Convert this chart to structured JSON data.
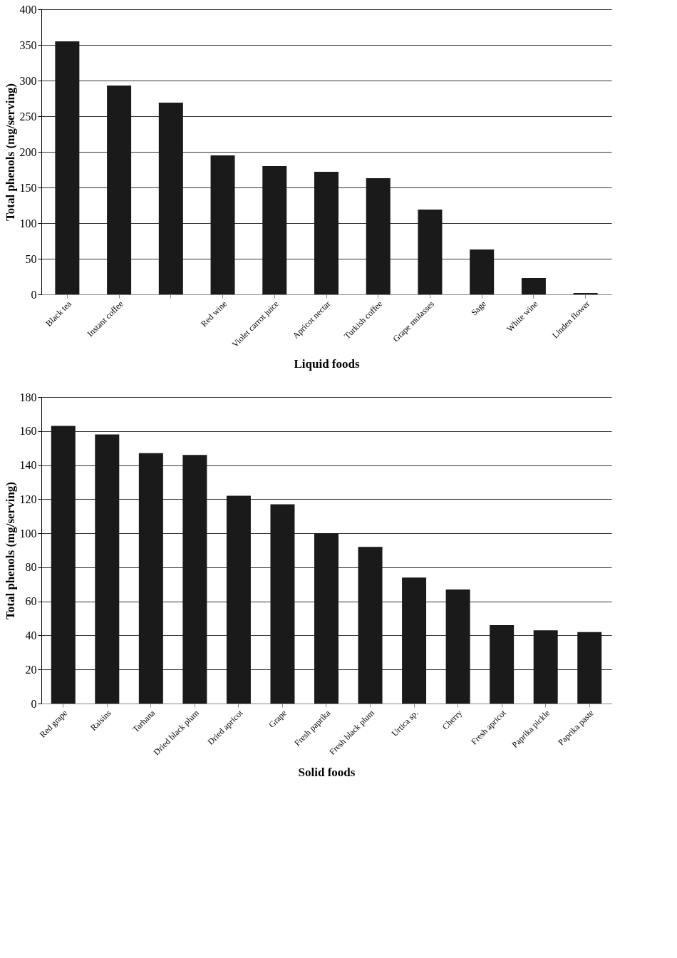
{
  "chart_data": [
    {
      "type": "bar",
      "xlabel": "Liquid foods",
      "ylabel": "Total phenols (mg/serving)",
      "categories": [
        "Black tea",
        "Instant coffee",
        null,
        "Red wine",
        "Violet carrot juice",
        "Apricot nectar",
        "Turkish coffee",
        "Grape molasses",
        "Sage",
        "White wine",
        "Linden flower"
      ],
      "values": [
        355,
        293,
        269,
        195,
        180,
        172,
        163,
        119,
        63,
        23,
        2
      ],
      "color": "#1a1a1a",
      "ylim": [
        0,
        400
      ],
      "yticks": [
        0,
        50,
        100,
        150,
        200,
        250,
        300,
        350,
        400
      ],
      "grid": "y"
    },
    {
      "type": "bar",
      "xlabel": "Solid foods",
      "ylabel": "Total phenols (mg/serving)",
      "categories": [
        "Red grape",
        "Raisins",
        "Tarhana",
        "Dried black plum",
        "Dried apricot",
        "Grape",
        "Fresh paprika",
        "Fresh black plum",
        "Urtica sp.",
        "Cherry",
        "Fresh apricot",
        "Paprika pickle",
        "Paprika paste"
      ],
      "values": [
        163,
        158,
        147,
        146,
        122,
        117,
        100,
        92,
        74,
        67,
        46,
        43,
        42
      ],
      "color": "#1a1a1a",
      "ylim": [
        0,
        180
      ],
      "yticks": [
        0,
        20,
        40,
        60,
        80,
        100,
        120,
        140,
        160,
        180
      ],
      "grid": "y"
    }
  ]
}
